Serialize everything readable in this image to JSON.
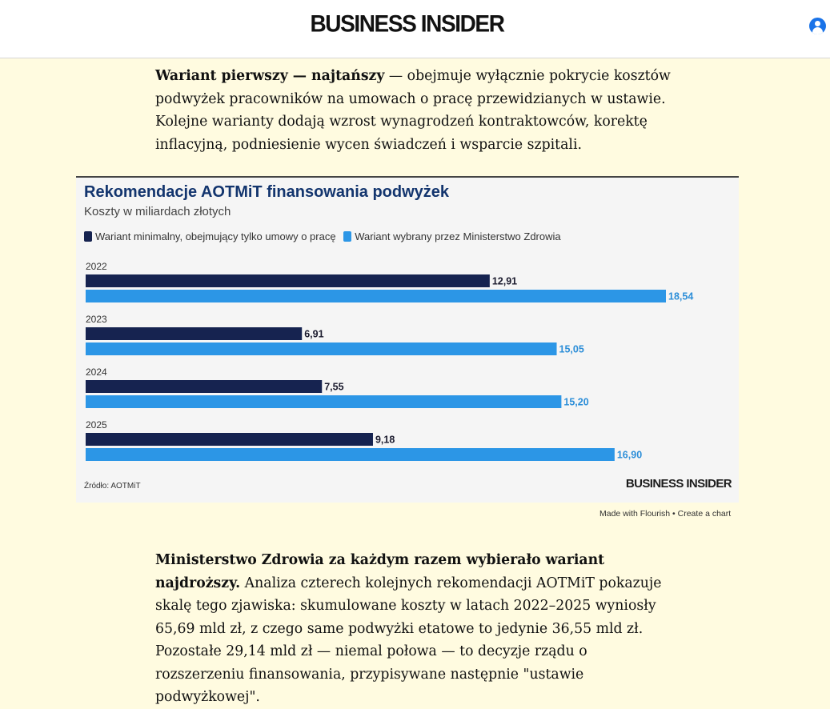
{
  "header": {
    "logo": "BUSINESS INSIDER",
    "account_icon": "user-circle-icon"
  },
  "article": {
    "para1_bold": "Wariant pierwszy — najtańszy",
    "para1_rest": " — obejmuje wyłącznie pokrycie kosztów podwyżek pracowników na umowach o pracę przewidzianych w ustawie. Kolejne warianty dodają wzrost wynagrodzeń kontraktowców, korektę inflacyjną, podniesienie wycen świadczeń i wsparcie szpitali.",
    "para2_bold": "Ministerstwo Zdrowia za każdym razem wybierało wariant najdroższy.",
    "para2_rest": " Analiza czterech kolejnych rekomendacji AOTMiT pokazuje skalę tego zjawiska: skumulowane koszty w latach 2022–2025 wyniosły 65,69 mld zł, z czego same podwyżki etatowe to jedynie 36,55 mld zł. Pozostałe 29,14 mld zł — niemal połowa — to decyzje rządu o rozszerzeniu finansowania, przypisywane następnie \"ustawie podwyżkowej\"."
  },
  "chart_data": {
    "type": "bar",
    "orientation": "horizontal",
    "title": "Rekomendacje AOTMiT finansowania podwyżek",
    "subtitle": "Koszty w miliardach złotych",
    "categories": [
      "2022",
      "2023",
      "2024",
      "2025"
    ],
    "series": [
      {
        "name": "Wariant minimalny, obejmujący tylko umowy o pracę",
        "color": "#162350",
        "values": [
          12.91,
          6.91,
          7.55,
          9.18
        ],
        "labels": [
          "12,91",
          "6,91",
          "7,55",
          "9,18"
        ]
      },
      {
        "name": "Wariant wybrany przez Ministerstwo Zdrowia",
        "color": "#2c96e6",
        "values": [
          18.54,
          15.05,
          15.2,
          16.9
        ],
        "labels": [
          "18,54",
          "15,05",
          "15,20",
          "16,90"
        ]
      }
    ],
    "xlim": [
      0,
      18.54
    ],
    "legend": "top-left",
    "grid": false,
    "source": "Źródło: AOTMiT",
    "logo": "BUSINESS INSIDER"
  },
  "footer": {
    "made_with": "Made with Flourish",
    "separator": " • ",
    "create": "Create a chart"
  }
}
